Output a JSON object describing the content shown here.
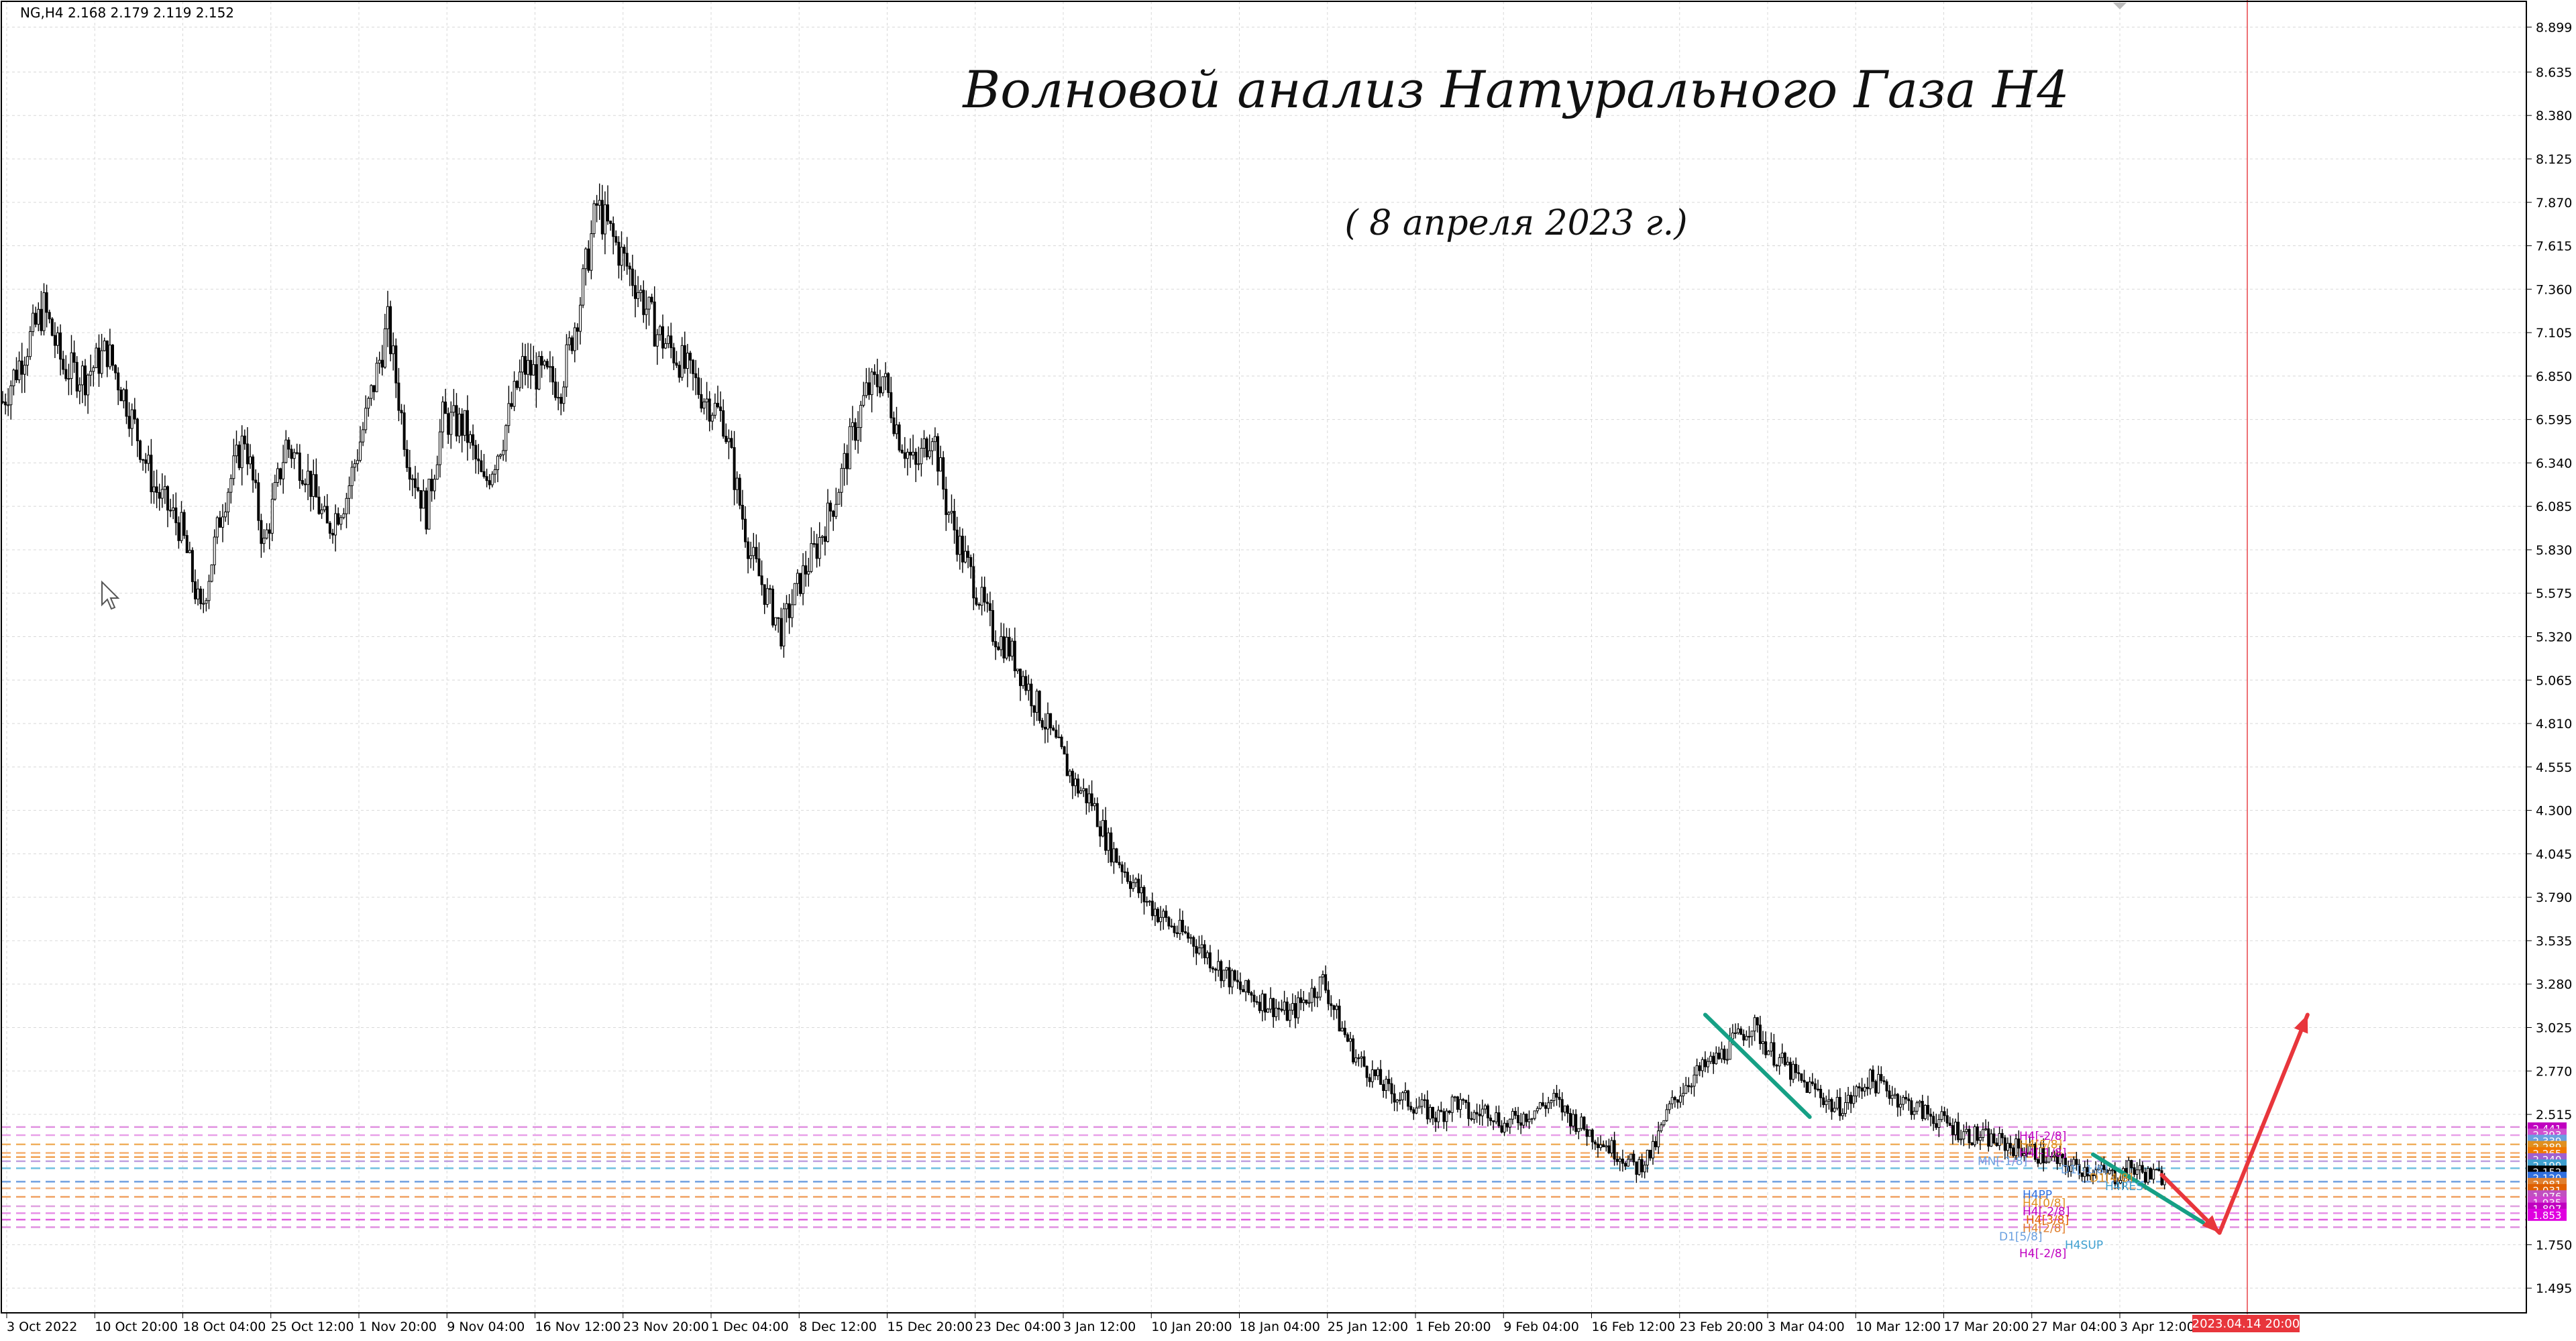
{
  "symbol_info": "NG,H4  2.168 2.179 2.119 2.152",
  "title": "Волновой анализ Натурального Газа H4",
  "subtitle": "( 8 апреля 2023 г.)",
  "chart_data": {
    "type": "candlestick",
    "symbol": "NG",
    "timeframe": "H4",
    "last_bar": {
      "open": 2.168,
      "high": 2.179,
      "low": 2.119,
      "close": 2.152
    },
    "ylim": [
      1.35,
      9.05
    ],
    "grid": true,
    "y_ticks": [
      "8.899",
      "8.635",
      "8.380",
      "8.125",
      "7.870",
      "7.615",
      "7.360",
      "7.105",
      "6.850",
      "6.595",
      "6.340",
      "6.085",
      "5.830",
      "5.575",
      "5.320",
      "5.065",
      "4.810",
      "4.555",
      "4.300",
      "4.045",
      "3.790",
      "3.535",
      "3.280",
      "3.025",
      "2.770",
      "2.515",
      "1.750",
      "1.495"
    ],
    "x_ticks": [
      "3 Oct 2022",
      "10 Oct 20:00",
      "18 Oct 04:00",
      "25 Oct 12:00",
      "1 Nov 20:00",
      "9 Nov 04:00",
      "16 Nov 12:00",
      "23 Nov 20:00",
      "1 Dec 04:00",
      "8 Dec 12:00",
      "15 Dec 20:00",
      "23 Dec 04:00",
      "3 Jan 12:00",
      "10 Jan 20:00",
      "18 Jan 04:00",
      "25 Jan 12:00",
      "1 Feb 20:00",
      "9 Feb 04:00",
      "16 Feb 12:00",
      "23 Feb 20:00",
      "3 Mar 04:00",
      "10 Mar 12:00",
      "17 Mar 20:00",
      "27 Mar 04:00",
      "3 Apr 12:00"
    ],
    "future_time_label": "2023.04.14 20:00",
    "price_path": [
      [
        0,
        6.7
      ],
      [
        8,
        7.0
      ],
      [
        15,
        7.25
      ],
      [
        22,
        6.9
      ],
      [
        30,
        6.85
      ],
      [
        38,
        7.0
      ],
      [
        45,
        6.7
      ],
      [
        55,
        6.2
      ],
      [
        65,
        5.95
      ],
      [
        72,
        5.45
      ],
      [
        80,
        6.1
      ],
      [
        88,
        6.5
      ],
      [
        95,
        5.85
      ],
      [
        103,
        6.45
      ],
      [
        110,
        6.3
      ],
      [
        118,
        5.95
      ],
      [
        125,
        6.15
      ],
      [
        132,
        6.6
      ],
      [
        140,
        7.15
      ],
      [
        147,
        6.4
      ],
      [
        154,
        6.05
      ],
      [
        160,
        6.6
      ],
      [
        168,
        6.55
      ],
      [
        175,
        6.2
      ],
      [
        182,
        6.5
      ],
      [
        189,
        6.9
      ],
      [
        196,
        6.85
      ],
      [
        203,
        6.8
      ],
      [
        210,
        7.3
      ],
      [
        216,
        7.85
      ],
      [
        222,
        7.65
      ],
      [
        230,
        7.4
      ],
      [
        238,
        7.1
      ],
      [
        246,
        6.95
      ],
      [
        254,
        6.75
      ],
      [
        262,
        6.6
      ],
      [
        268,
        6.1
      ],
      [
        272,
        5.8
      ],
      [
        278,
        5.55
      ],
      [
        283,
        5.35
      ],
      [
        290,
        5.65
      ],
      [
        296,
        5.85
      ],
      [
        303,
        6.15
      ],
      [
        308,
        6.45
      ],
      [
        314,
        6.75
      ],
      [
        320,
        6.85
      ],
      [
        326,
        6.5
      ],
      [
        332,
        6.3
      ],
      [
        338,
        6.55
      ],
      [
        343,
        6.1
      ],
      [
        348,
        5.85
      ],
      [
        354,
        5.6
      ],
      [
        360,
        5.35
      ],
      [
        366,
        5.25
      ],
      [
        372,
        5.05
      ],
      [
        378,
        4.85
      ],
      [
        384,
        4.65
      ],
      [
        390,
        4.45
      ],
      [
        396,
        4.35
      ],
      [
        402,
        4.1
      ],
      [
        408,
        3.95
      ],
      [
        414,
        3.8
      ],
      [
        420,
        3.7
      ],
      [
        426,
        3.6
      ],
      [
        432,
        3.55
      ],
      [
        438,
        3.45
      ],
      [
        444,
        3.35
      ],
      [
        450,
        3.25
      ],
      [
        456,
        3.2
      ],
      [
        462,
        3.15
      ],
      [
        468,
        3.1
      ],
      [
        474,
        3.2
      ],
      [
        480,
        3.3
      ],
      [
        486,
        3.05
      ],
      [
        492,
        2.85
      ],
      [
        498,
        2.75
      ],
      [
        504,
        2.65
      ],
      [
        510,
        2.6
      ],
      [
        516,
        2.55
      ],
      [
        522,
        2.5
      ],
      [
        528,
        2.6
      ],
      [
        534,
        2.5
      ],
      [
        540,
        2.55
      ],
      [
        546,
        2.45
      ],
      [
        552,
        2.5
      ],
      [
        558,
        2.55
      ],
      [
        564,
        2.6
      ],
      [
        570,
        2.5
      ],
      [
        576,
        2.42
      ],
      [
        582,
        2.35
      ],
      [
        588,
        2.28
      ],
      [
        594,
        2.2
      ],
      [
        600,
        2.3
      ],
      [
        606,
        2.55
      ],
      [
        612,
        2.7
      ],
      [
        618,
        2.78
      ],
      [
        624,
        2.85
      ],
      [
        630,
        2.95
      ],
      [
        636,
        3.05
      ],
      [
        642,
        2.9
      ],
      [
        648,
        2.8
      ],
      [
        654,
        2.7
      ],
      [
        660,
        2.65
      ],
      [
        666,
        2.55
      ],
      [
        672,
        2.6
      ],
      [
        678,
        2.72
      ],
      [
        684,
        2.68
      ],
      [
        690,
        2.6
      ],
      [
        696,
        2.55
      ],
      [
        702,
        2.5
      ],
      [
        708,
        2.45
      ],
      [
        714,
        2.4
      ],
      [
        720,
        2.38
      ],
      [
        726,
        2.35
      ],
      [
        732,
        2.32
      ],
      [
        738,
        2.3
      ],
      [
        744,
        2.25
      ],
      [
        750,
        2.22
      ],
      [
        756,
        2.2
      ],
      [
        762,
        2.18
      ],
      [
        768,
        2.15
      ],
      [
        774,
        2.2
      ],
      [
        780,
        2.16
      ],
      [
        786,
        2.15
      ]
    ],
    "support_resistance_labels": [
      "H4[-2/8]",
      "H4[5/8]",
      "H4[-1/8]",
      "MN[-1/8]",
      "D1[-1/8]",
      "D1[4/8]",
      "H4RES",
      "H4PP",
      "H4[0/8]",
      "H4[-2/8]",
      "H4[3/8]",
      "H4[2/8]",
      "D1[5/8]",
      "H4SUP",
      "H4[-2/8]"
    ],
    "price_badges": [
      {
        "value": "2.441",
        "color": "#c000c0"
      },
      {
        "value": "2.393",
        "color": "#d050d0"
      },
      {
        "value": "2.339",
        "color": "#6aa0e0"
      },
      {
        "value": "2.289",
        "color": "#e09020"
      },
      {
        "value": "2.265",
        "color": "#f07800"
      },
      {
        "value": "2.240",
        "color": "#a060d0"
      },
      {
        "value": "2.199",
        "color": "#40a0d0"
      },
      {
        "value": "2.152",
        "color": "#000000"
      },
      {
        "value": "2.120",
        "color": "#3070e0"
      },
      {
        "value": "2.081",
        "color": "#e08030"
      },
      {
        "value": "2.031",
        "color": "#e06000"
      },
      {
        "value": "1.976",
        "color": "#c050c0"
      },
      {
        "value": "1.935",
        "color": "#d040d0"
      },
      {
        "value": "1.897",
        "color": "#c000c0"
      },
      {
        "value": "1.853",
        "color": "#e000e0"
      }
    ],
    "levels": [
      {
        "price": 2.441,
        "color": "#e090e0"
      },
      {
        "price": 2.393,
        "color": "#e8a0e8"
      },
      {
        "price": 2.339,
        "color": "#f0b060"
      },
      {
        "price": 2.289,
        "color": "#f5b070"
      },
      {
        "price": 2.265,
        "color": "#f0a050"
      },
      {
        "price": 2.24,
        "color": "#c0a0e0"
      },
      {
        "price": 2.199,
        "color": "#70c0e0"
      },
      {
        "price": 2.12,
        "color": "#70a0e0"
      },
      {
        "price": 2.081,
        "color": "#f0b080"
      },
      {
        "price": 2.031,
        "color": "#f0a060"
      },
      {
        "price": 1.976,
        "color": "#e0a0e0"
      },
      {
        "price": 1.935,
        "color": "#e890e8"
      },
      {
        "price": 1.897,
        "color": "#e060e0"
      },
      {
        "price": 1.853,
        "color": "#e090e0"
      }
    ],
    "wave_lines": [
      {
        "color": "#16a085",
        "from": [
          619,
          3.1
        ],
        "to": [
          657,
          2.5
        ]
      },
      {
        "color": "#16a085",
        "from": [
          760,
          2.28
        ],
        "to": [
          800,
          1.88
        ]
      }
    ],
    "forecast_arrows": [
      {
        "color": "#e8363c",
        "from": [
          785,
          2.16
        ],
        "to": [
          806,
          1.82
        ]
      },
      {
        "color": "#e8363c",
        "from": [
          806,
          1.82
        ],
        "to": [
          838,
          3.1
        ]
      }
    ]
  }
}
